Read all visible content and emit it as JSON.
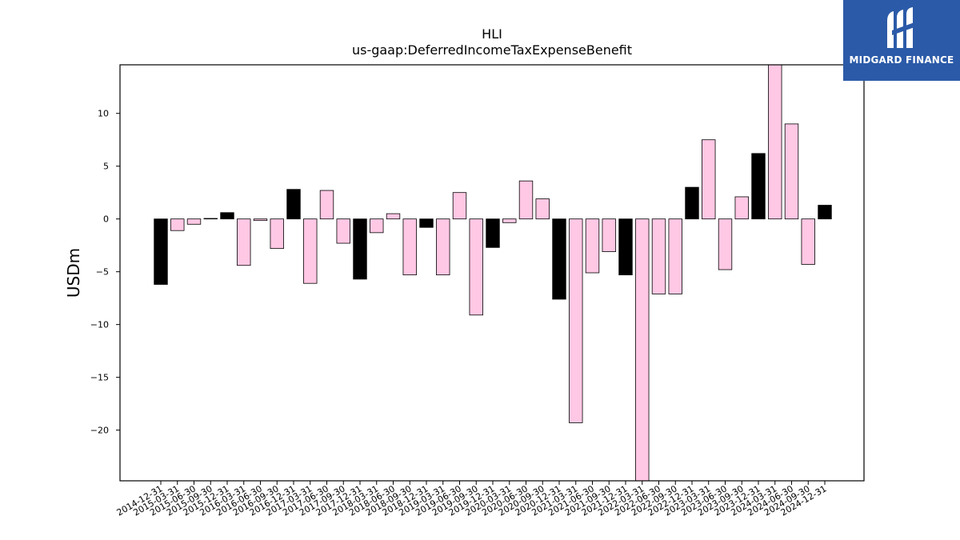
{
  "chart_data": {
    "type": "bar",
    "title": "HLI",
    "subtitle": "us-gaap:DeferredIncomeTaxExpenseBenefit",
    "xlabel": "",
    "ylabel": "USDm",
    "ylim": [
      -24.8,
      14.6
    ],
    "yticks": [
      -20,
      -15,
      -10,
      -5,
      0,
      5,
      10
    ],
    "ytick_labels": [
      "−20",
      "−15",
      "−10",
      "−5",
      "0",
      "5",
      "10"
    ],
    "grid": false,
    "categories": [
      "2014-12-31",
      "2015-03-31",
      "2015-06-30",
      "2015-09-30",
      "2015-12-31",
      "2016-03-31",
      "2016-06-30",
      "2016-09-30",
      "2016-12-31",
      "2017-03-31",
      "2017-06-30",
      "2017-09-30",
      "2017-12-31",
      "2018-03-31",
      "2018-06-30",
      "2018-09-30",
      "2018-12-31",
      "2019-03-31",
      "2019-06-30",
      "2019-09-30",
      "2019-12-31",
      "2020-03-31",
      "2020-06-30",
      "2020-09-30",
      "2020-12-31",
      "2021-03-31",
      "2021-06-30",
      "2021-09-30",
      "2021-12-31",
      "2022-03-31",
      "2022-06-30",
      "2022-09-30",
      "2022-12-31",
      "2023-03-31",
      "2023-06-30",
      "2023-09-30",
      "2023-12-31",
      "2024-03-31",
      "2024-06-30",
      "2024-09-30",
      "2024-12-31"
    ],
    "values": [
      -6.2,
      -1.1,
      -0.5,
      0.05,
      0.6,
      -4.4,
      -0.15,
      -2.8,
      2.8,
      -6.1,
      2.7,
      -2.3,
      -5.7,
      -1.3,
      0.5,
      -5.3,
      -0.8,
      -5.3,
      2.5,
      -9.1,
      -2.7,
      -0.35,
      3.6,
      1.9,
      -7.6,
      -19.3,
      -5.1,
      -3.1,
      -5.3,
      -24.8,
      -7.1,
      -7.1,
      3.0,
      7.5,
      -4.8,
      2.1,
      6.2,
      14.6,
      9.0,
      -4.3,
      1.3
    ],
    "colors": [
      "#000000",
      "#ffc8e4",
      "#ffc8e4",
      "#ffc8e4",
      "#000000",
      "#ffc8e4",
      "#ffc8e4",
      "#ffc8e4",
      "#000000",
      "#ffc8e4",
      "#ffc8e4",
      "#ffc8e4",
      "#000000",
      "#ffc8e4",
      "#ffc8e4",
      "#ffc8e4",
      "#000000",
      "#ffc8e4",
      "#ffc8e4",
      "#ffc8e4",
      "#000000",
      "#ffc8e4",
      "#ffc8e4",
      "#ffc8e4",
      "#000000",
      "#ffc8e4",
      "#ffc8e4",
      "#ffc8e4",
      "#000000",
      "#ffc8e4",
      "#ffc8e4",
      "#ffc8e4",
      "#000000",
      "#ffc8e4",
      "#ffc8e4",
      "#ffc8e4",
      "#000000",
      "#ffc8e4",
      "#ffc8e4",
      "#ffc8e4",
      "#000000"
    ]
  },
  "logo": {
    "text": "MIDGARD FINANCE",
    "icon": "midgard-logo-icon",
    "background": "#2b5aa8"
  }
}
